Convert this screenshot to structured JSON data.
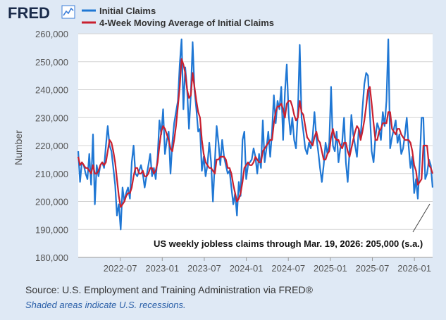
{
  "header": {
    "logo_text": "FRED",
    "logo_icon": "line-graph-icon"
  },
  "colors": {
    "initial_claims": "#1f77d4",
    "moving_average": "#c9202f",
    "background": "#dfe9f5",
    "plot_bg": "#ffffff",
    "grid": "#d4d4d4"
  },
  "chart_data": {
    "type": "line",
    "title": "",
    "xlabel": "",
    "ylabel": "Number",
    "ylim": [
      180000,
      260000
    ],
    "y_ticks": [
      180000,
      190000,
      200000,
      210000,
      220000,
      230000,
      240000,
      250000,
      260000
    ],
    "y_tick_labels": [
      "180,000",
      "190,000",
      "200,000",
      "210,000",
      "220,000",
      "230,000",
      "240,000",
      "250,000",
      "260,000"
    ],
    "x_range_months": [
      0,
      50.6
    ],
    "x_ticks_months": [
      6,
      12,
      18,
      24,
      30,
      36,
      42,
      48
    ],
    "x_tick_labels": [
      "2022-07",
      "2023-01",
      "2023-07",
      "2024-01",
      "2024-07",
      "2025-01",
      "2025-07",
      "2026-01"
    ],
    "x_units": "months since 2022-01",
    "legend": [
      "Initial Claims",
      "4-Week Moving Average of Initial Claims"
    ],
    "legend_position": "top-left",
    "annotation": "US weekly jobless claims through Mar. 19, 2026: 205,000 (s.a.)",
    "series": [
      {
        "name": "Initial Claims",
        "values": [
          218000,
          207000,
          214000,
          213000,
          210000,
          208000,
          217000,
          206000,
          224000,
          199000,
          213000,
          209000,
          213000,
          214000,
          212000,
          220000,
          227000,
          220000,
          218000,
          212000,
          206000,
          195000,
          199000,
          190000,
          205000,
          200000,
          203000,
          205000,
          201000,
          214000,
          220000,
          210000,
          209000,
          211000,
          213000,
          210000,
          205000,
          209000,
          213000,
          217000,
          209000,
          212000,
          208000,
          216000,
          229000,
          224000,
          233000,
          217000,
          222000,
          225000,
          210000,
          221000,
          228000,
          232000,
          236000,
          249000,
          258000,
          233000,
          248000,
          240000,
          226000,
          238000,
          257000,
          240000,
          233000,
          225000,
          226000,
          211000,
          216000,
          209000,
          213000,
          221000,
          214000,
          200000,
          214000,
          227000,
          221000,
          213000,
          222000,
          216000,
          213000,
          210000,
          211000,
          205000,
          199000,
          203000,
          195000,
          207000,
          202000,
          222000,
          225000,
          208000,
          213000,
          214000,
          215000,
          219000,
          216000,
          210000,
          217000,
          212000,
          229000,
          214000,
          219000,
          225000,
          216000,
          225000,
          238000,
          228000,
          236000,
          233000,
          241000,
          222000,
          239000,
          249000,
          231000,
          224000,
          230000,
          222000,
          219000,
          232000,
          256000,
          230000,
          225000,
          219000,
          217000,
          221000,
          219000,
          223000,
          232000,
          223000,
          218000,
          212000,
          207000,
          213000,
          221000,
          217000,
          221000,
          241000,
          220000,
          218000,
          225000,
          214000,
          219000,
          221000,
          230000,
          214000,
          207000,
          218000,
          231000,
          224000,
          220000,
          216000,
          226000,
          223000,
          233000,
          242000,
          246000,
          245000,
          232000,
          218000,
          214000,
          223000,
          228000,
          226000,
          222000,
          232000,
          227000,
          236000,
          258000,
          219000,
          223000,
          226000,
          229000,
          221000,
          224000,
          217000,
          219000,
          224000,
          230000,
          220000,
          212000,
          216000,
          203000,
          208000,
          201000,
          214000,
          230000,
          230000,
          208000,
          210000,
          215000,
          213000,
          205000
        ],
        "color": "#1f77d4"
      },
      {
        "name": "4-Week Moving Average of Initial Claims",
        "values": [
          216000,
          213000,
          214000,
          213000,
          212000,
          212000,
          211000,
          210000,
          213000,
          210000,
          210000,
          211000,
          213000,
          214000,
          213000,
          214000,
          218000,
          222000,
          221000,
          218000,
          214000,
          208000,
          202000,
          198000,
          199000,
          200000,
          202000,
          203000,
          203000,
          205000,
          209000,
          212000,
          212000,
          210000,
          210000,
          211000,
          209000,
          209000,
          210000,
          212000,
          212000,
          210000,
          211000,
          214000,
          220000,
          225000,
          227000,
          226000,
          224000,
          222000,
          219000,
          218000,
          222000,
          227000,
          234000,
          241000,
          251000,
          249000,
          246000,
          240000,
          237000,
          238000,
          246000,
          241000,
          236000,
          232000,
          230000,
          222000,
          217000,
          214000,
          213000,
          212000,
          212000,
          211000,
          210000,
          215000,
          215000,
          216000,
          216000,
          216000,
          215000,
          212000,
          212000,
          210000,
          206000,
          203000,
          200000,
          201000,
          203000,
          207000,
          212000,
          213000,
          214000,
          213000,
          213000,
          214000,
          216000,
          215000,
          214000,
          214000,
          218000,
          219000,
          220000,
          221000,
          222000,
          222000,
          228000,
          232000,
          234000,
          234000,
          235000,
          233000,
          230000,
          235000,
          236000,
          236000,
          234000,
          231000,
          229000,
          230000,
          236000,
          232000,
          231000,
          227000,
          223000,
          222000,
          221000,
          220000,
          223000,
          225000,
          222000,
          221000,
          218000,
          215000,
          215000,
          217000,
          218000,
          223000,
          226000,
          223000,
          222000,
          222000,
          220000,
          219000,
          221000,
          221000,
          218000,
          216000,
          219000,
          222000,
          225000,
          227000,
          226000,
          222000,
          225000,
          229000,
          234000,
          240000,
          241000,
          235000,
          228000,
          222000,
          222000,
          225000,
          226000,
          228000,
          228000,
          228000,
          232000,
          232000,
          226000,
          225000,
          224000,
          226000,
          226000,
          224000,
          223000,
          222000,
          222000,
          222000,
          221000,
          218000,
          213000,
          211000,
          206000,
          207000,
          208000,
          220000,
          220000,
          220000,
          213000,
          212000,
          210000
        ],
        "color": "#c9202f"
      }
    ]
  },
  "footer": {
    "source": "Source: U.S. Employment and Training Administration via FRED®",
    "recession_note": "Shaded areas indicate U.S. recessions."
  }
}
